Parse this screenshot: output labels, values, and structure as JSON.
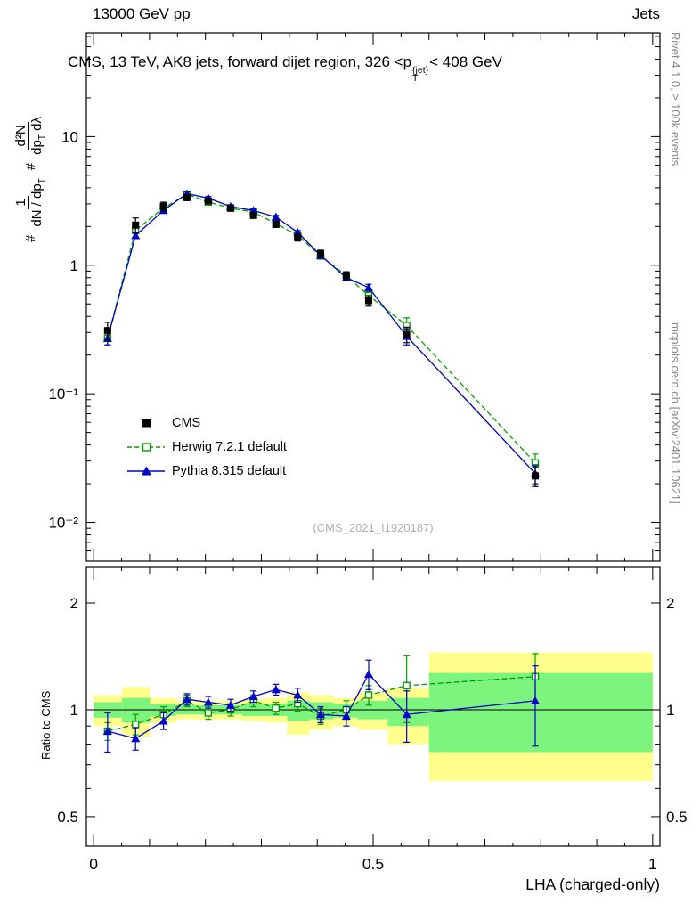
{
  "header": {
    "left": "13000 GeV pp",
    "right": "Jets"
  },
  "title": {
    "pre": "CMS, 13 TeV, AK8 jets, forward dijet region, 326 <p",
    "sup": "{jet}",
    "sub": "T",
    "post": "< 408 GeV"
  },
  "ylabel": {
    "hash1": "#",
    "frac1_num": "1",
    "frac1_den_a": "dN / dp",
    "frac1_den_sub": "T",
    "hash2": "#",
    "frac2_num": "d²N",
    "frac2_den_a": "dp",
    "frac2_den_sub": "T",
    "frac2_den_b": " dλ"
  },
  "ratio_ylabel": "Ratio to CMS",
  "xaxis_label": "LHA (charged-only)",
  "watermark": "(CMS_2021_I1920187)",
  "side_notes": {
    "rivet": "Rivet 4.1.0, ≥ 100k events",
    "mcplots": "mcplots.cern.ch [arXiv:2401.10621]"
  },
  "legend": {
    "items": [
      {
        "label": "CMS"
      },
      {
        "label": "Herwig 7.2.1 default"
      },
      {
        "label": "Pythia 8.315 default"
      }
    ]
  },
  "colors": {
    "cms": "#000000",
    "herwig": "#00a000",
    "pythia": "#0000cc",
    "band_yellow": "#ffff8c",
    "band_green": "#7df47d",
    "watermark_gray": "#b0b0b0",
    "side_note_gray": "#888888"
  },
  "chart_data": {
    "type": "line",
    "title": "CMS, 13 TeV, AK8 jets, forward dijet region, 326 < pT{jet} < 408 GeV",
    "xlabel": "LHA (charged-only)",
    "ylabel": "1/(dN/dpT) d²N/(dpT dλ)",
    "ratio_label": "Ratio to CMS",
    "grid": false,
    "legend_position": "middle-left",
    "axes": {
      "xlim": [
        -0.013,
        1.013
      ],
      "main_ylim": [
        0.005,
        64
      ],
      "ratio_ylim": [
        0.413,
        2.52
      ],
      "yscale": "log",
      "xticks": [
        {
          "v": 0,
          "label": "0"
        },
        {
          "v": 0.5,
          "label": "0.5"
        },
        {
          "v": 1,
          "label": "1"
        }
      ],
      "main_yticks": [
        {
          "v": 10,
          "label": "10"
        },
        {
          "v": 1,
          "label": "1"
        },
        {
          "v": 0.1,
          "label": "10⁻¹"
        },
        {
          "v": 0.01,
          "label": "10⁻²"
        }
      ],
      "ratio_yticks": [
        {
          "v": 2,
          "label": "2"
        },
        {
          "v": 1,
          "label": "1"
        },
        {
          "v": 0.5,
          "label": "0.5"
        }
      ]
    },
    "x": [
      0.025,
      0.075,
      0.125,
      0.167,
      0.205,
      0.245,
      0.286,
      0.326,
      0.365,
      0.406,
      0.452,
      0.492,
      0.56,
      0.79
    ],
    "series": [
      {
        "name": "CMS",
        "role": "data",
        "color_key": "cms",
        "marker": "square",
        "line": "none",
        "values": [
          0.31,
          2.05,
          2.87,
          3.36,
          3.16,
          2.78,
          2.44,
          2.08,
          1.64,
          1.23,
          0.83,
          0.53,
          0.29,
          0.023
        ],
        "errors": [
          0.05,
          0.28,
          0.22,
          0.18,
          0.15,
          0.13,
          0.12,
          0.11,
          0.1,
          0.08,
          0.06,
          0.05,
          0.04,
          0.004
        ]
      },
      {
        "name": "Herwig 7.2.1 default",
        "role": "mc",
        "color_key": "herwig",
        "marker": "open-square",
        "line": "dashed",
        "values": [
          0.27,
          1.87,
          2.78,
          3.56,
          3.1,
          2.78,
          2.59,
          2.1,
          1.71,
          1.18,
          0.83,
          0.58,
          0.34,
          0.029
        ],
        "errors": [
          0.03,
          0.1,
          0.1,
          0.11,
          0.1,
          0.09,
          0.08,
          0.07,
          0.06,
          0.05,
          0.04,
          0.04,
          0.05,
          0.005
        ],
        "ratio": [
          0.87,
          0.91,
          0.97,
          1.06,
          0.98,
          1.0,
          1.06,
          1.01,
          1.04,
          0.96,
          1.0,
          1.1,
          1.17,
          1.24
        ],
        "ratio_errors": [
          0.05,
          0.06,
          0.05,
          0.04,
          0.04,
          0.04,
          0.04,
          0.04,
          0.05,
          0.05,
          0.06,
          0.07,
          0.25,
          0.2
        ]
      },
      {
        "name": "Pythia 8.315 default",
        "role": "mc",
        "color_key": "pythia",
        "marker": "triangle",
        "line": "solid",
        "values": [
          0.27,
          1.7,
          2.67,
          3.6,
          3.32,
          2.86,
          2.66,
          2.37,
          1.8,
          1.19,
          0.8,
          0.67,
          0.28,
          0.024
        ],
        "errors": [
          0.03,
          0.09,
          0.1,
          0.11,
          0.1,
          0.09,
          0.08,
          0.07,
          0.06,
          0.05,
          0.04,
          0.04,
          0.04,
          0.004
        ],
        "ratio": [
          0.87,
          0.83,
          0.93,
          1.07,
          1.05,
          1.03,
          1.09,
          1.14,
          1.1,
          0.97,
          0.96,
          1.26,
          0.97,
          1.06
        ],
        "ratio_errors": [
          0.11,
          0.06,
          0.05,
          0.04,
          0.04,
          0.04,
          0.04,
          0.04,
          0.05,
          0.05,
          0.06,
          0.12,
          0.16,
          0.27
        ]
      }
    ],
    "ratio_bands": {
      "edges": [
        0,
        0.051,
        0.101,
        0.147,
        0.186,
        0.226,
        0.266,
        0.306,
        0.346,
        0.386,
        0.429,
        0.472,
        0.526,
        0.6,
        1.0
      ],
      "yellow_lo": [
        0.9,
        0.84,
        0.92,
        0.94,
        0.94,
        0.94,
        0.93,
        0.92,
        0.85,
        0.88,
        0.9,
        0.88,
        0.8,
        0.63
      ],
      "yellow_hi": [
        1.1,
        1.16,
        1.08,
        1.06,
        1.06,
        1.06,
        1.07,
        1.08,
        1.12,
        1.1,
        1.08,
        1.12,
        1.15,
        1.45
      ],
      "green_lo": [
        0.95,
        0.92,
        0.96,
        0.97,
        0.97,
        0.97,
        0.96,
        0.96,
        0.93,
        0.94,
        0.95,
        0.94,
        0.9,
        0.76
      ],
      "green_hi": [
        1.05,
        1.08,
        1.04,
        1.03,
        1.03,
        1.03,
        1.04,
        1.04,
        1.06,
        1.05,
        1.04,
        1.06,
        1.08,
        1.27
      ]
    }
  }
}
